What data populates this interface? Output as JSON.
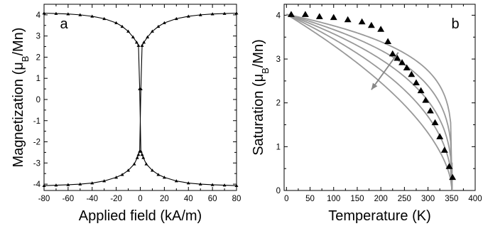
{
  "chart_data": [
    {
      "type": "line",
      "panel_label": "a",
      "xlabel": "Applied field (kA/m)",
      "ylabel_parts": [
        "Magnetization (",
        "μ",
        "B",
        "/Mn)"
      ],
      "xlim": [
        -80,
        80
      ],
      "ylim": [
        -4.3,
        4.5
      ],
      "xticks": [
        -80,
        -60,
        -40,
        -20,
        0,
        20,
        40,
        60,
        80
      ],
      "yticks": [
        -4,
        -3,
        -2,
        -1,
        0,
        1,
        2,
        3,
        4
      ],
      "marker": "triangle",
      "color": "#000000",
      "series": [
        {
          "x": [
            -80,
            -70,
            -60,
            -50,
            -40,
            -30,
            -20,
            -15,
            -10,
            -6,
            -3,
            -1.5,
            -0.5,
            0.5,
            1.5,
            2.5,
            5,
            10,
            15,
            20,
            30,
            40,
            50,
            60,
            70,
            80
          ],
          "y": [
            4.08,
            4.06,
            4.04,
            4.0,
            3.93,
            3.82,
            3.62,
            3.45,
            3.22,
            2.95,
            2.7,
            2.55,
            0.5,
            -2.45,
            -2.6,
            -2.75,
            -3.05,
            -3.35,
            -3.55,
            -3.68,
            -3.85,
            -3.95,
            -4.0,
            -4.03,
            -4.05,
            -4.07
          ]
        },
        {
          "x": [
            -80,
            -70,
            -60,
            -50,
            -40,
            -30,
            -20,
            -15,
            -10,
            -5,
            -2.5,
            -1.5,
            -0.5,
            0.5,
            1.5,
            3,
            6,
            10,
            15,
            20,
            30,
            40,
            50,
            60,
            70,
            80
          ],
          "y": [
            -4.07,
            -4.05,
            -4.03,
            -4.0,
            -3.95,
            -3.85,
            -3.68,
            -3.55,
            -3.35,
            -3.05,
            -2.75,
            -2.6,
            -2.45,
            0.5,
            2.55,
            2.7,
            2.95,
            3.22,
            3.45,
            3.62,
            3.82,
            3.93,
            4.0,
            4.04,
            4.06,
            4.08
          ]
        }
      ]
    },
    {
      "type": "line",
      "panel_label": "b",
      "xlabel": "Temperature (K)",
      "ylabel_parts": [
        "Saturation (",
        "μ",
        "B",
        "/Mn)"
      ],
      "xlim": [
        -5,
        400
      ],
      "ylim": [
        0,
        4.25
      ],
      "xticks": [
        0,
        50,
        100,
        150,
        200,
        250,
        300,
        350,
        400
      ],
      "yticks": [
        0,
        1,
        2,
        3,
        4
      ],
      "curve_color": "#999999",
      "marker_color": "#000000",
      "curves": [
        {
          "beta": 0.2
        },
        {
          "beta": 0.27
        },
        {
          "beta": 0.35
        },
        {
          "beta": 0.45
        },
        {
          "beta": 0.58
        }
      ],
      "curve_params": {
        "Ms0": 4.02,
        "Tc": 351,
        "T_start": 0
      },
      "arrow": {
        "from": [
          237,
          3.15
        ],
        "to": [
          180,
          2.3
        ],
        "color": "#888888"
      },
      "points": {
        "x": [
          10,
          40,
          70,
          100,
          130,
          160,
          180,
          200,
          215,
          225,
          235,
          245,
          255,
          265,
          275,
          285,
          295,
          305,
          315,
          325,
          335,
          345,
          352
        ],
        "y": [
          4.02,
          4.02,
          3.97,
          3.95,
          3.9,
          3.85,
          3.77,
          3.68,
          3.4,
          3.12,
          3.02,
          2.92,
          2.8,
          2.65,
          2.46,
          2.28,
          2.06,
          1.82,
          1.55,
          1.23,
          0.92,
          0.55,
          0.3
        ]
      }
    }
  ]
}
